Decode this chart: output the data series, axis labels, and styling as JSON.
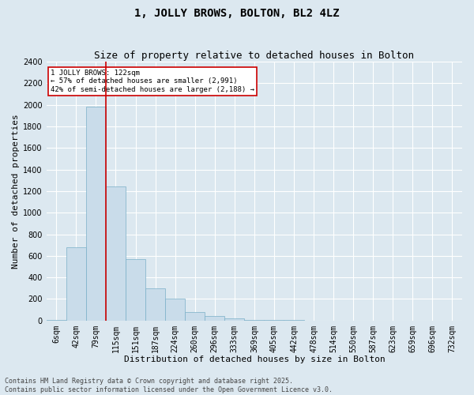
{
  "title": "1, JOLLY BROWS, BOLTON, BL2 4LZ",
  "subtitle": "Size of property relative to detached houses in Bolton",
  "xlabel": "Distribution of detached houses by size in Bolton",
  "ylabel": "Number of detached properties",
  "bar_color": "#c9dcea",
  "bar_edge_color": "#7aafc8",
  "background_color": "#dce8f0",
  "grid_color": "#ffffff",
  "fig_background": "#dce8f0",
  "categories": [
    "6sqm",
    "42sqm",
    "79sqm",
    "115sqm",
    "151sqm",
    "187sqm",
    "224sqm",
    "260sqm",
    "296sqm",
    "333sqm",
    "369sqm",
    "405sqm",
    "442sqm",
    "478sqm",
    "514sqm",
    "550sqm",
    "587sqm",
    "623sqm",
    "659sqm",
    "696sqm",
    "732sqm"
  ],
  "values": [
    5,
    680,
    1980,
    1240,
    570,
    300,
    200,
    75,
    40,
    20,
    5,
    3,
    2,
    1,
    0,
    1,
    0,
    0,
    0,
    0,
    0
  ],
  "ylim": [
    0,
    2400
  ],
  "yticks": [
    0,
    200,
    400,
    600,
    800,
    1000,
    1200,
    1400,
    1600,
    1800,
    2000,
    2200,
    2400
  ],
  "vline_position": 2.5,
  "vline_color": "#cc0000",
  "annotation_title": "1 JOLLY BROWS: 122sqm",
  "annotation_line1": "← 57% of detached houses are smaller (2,991)",
  "annotation_line2": "42% of semi-detached houses are larger (2,188) →",
  "annotation_box_color": "#cc0000",
  "footer_line1": "Contains HM Land Registry data © Crown copyright and database right 2025.",
  "footer_line2": "Contains public sector information licensed under the Open Government Licence v3.0.",
  "title_fontsize": 10,
  "subtitle_fontsize": 9,
  "axis_label_fontsize": 8,
  "tick_fontsize": 7,
  "annotation_fontsize": 6.5,
  "footer_fontsize": 6
}
